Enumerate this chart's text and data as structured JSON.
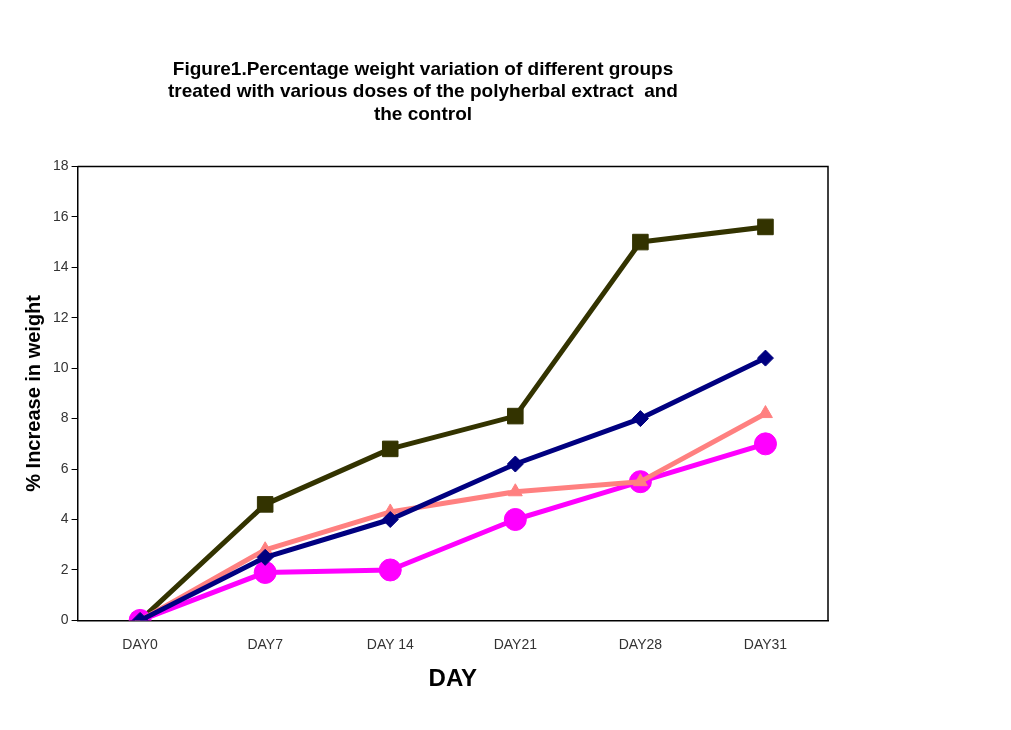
{
  "chart_data": {
    "type": "line",
    "title": "Figure1.Percentage weight variation of different groups treated with various doses of the polyherbal extract  and the control",
    "xlabel": "DAY",
    "ylabel": "% Increase in weight",
    "categories": [
      "DAY0",
      "DAY7",
      "DAY 14",
      "DAY21",
      "DAY28",
      "DAY31"
    ],
    "series": [
      {
        "color": "#000080",
        "marker": "diamond",
        "values": [
          0,
          2.5,
          4.0,
          6.2,
          8.0,
          10.4
        ]
      },
      {
        "color": "#ff8080",
        "marker": "triangle",
        "values": [
          0,
          2.8,
          4.3,
          5.1,
          5.5,
          8.2
        ]
      },
      {
        "color": "#ff00ff",
        "marker": "circle",
        "values": [
          0,
          1.9,
          2.0,
          4.0,
          5.5,
          7.0
        ]
      },
      {
        "color": "#333300",
        "marker": "square",
        "values": [
          0,
          4.6,
          6.8,
          8.1,
          15.0,
          15.6
        ]
      }
    ],
    "ylim": [
      0,
      18
    ],
    "yticks": [
      0,
      2,
      4,
      6,
      8,
      10,
      12,
      14,
      16,
      18
    ],
    "grid": false,
    "legend": false,
    "line_style": "solid"
  }
}
